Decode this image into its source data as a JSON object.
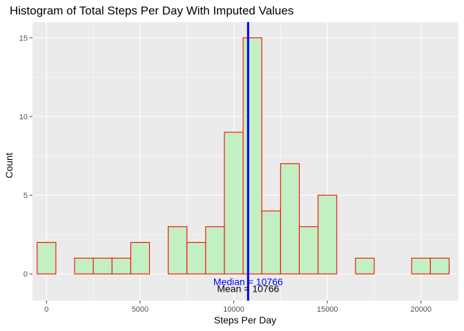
{
  "chart_data": {
    "type": "bar",
    "title": "Histogram of Total Steps Per Day With Imputed Values",
    "xlabel": "Steps Per Day",
    "ylabel": "Count",
    "xlim": [
      -750,
      22000
    ],
    "ylim": [
      -1.7,
      16
    ],
    "x_ticks": [
      0,
      5000,
      10000,
      15000,
      20000
    ],
    "x_tick_labels": [
      "0",
      "5000",
      "10000",
      "15000",
      "20000"
    ],
    "y_ticks": [
      0,
      5,
      10,
      15
    ],
    "y_tick_labels": [
      "0",
      "5",
      "10",
      "15"
    ],
    "grid": true,
    "bin_width": 1000,
    "bins": [
      {
        "center": 0,
        "count": 2
      },
      {
        "center": 1000,
        "count": 0
      },
      {
        "center": 2000,
        "count": 1
      },
      {
        "center": 3000,
        "count": 1
      },
      {
        "center": 4000,
        "count": 1
      },
      {
        "center": 5000,
        "count": 2
      },
      {
        "center": 6000,
        "count": 0
      },
      {
        "center": 7000,
        "count": 3
      },
      {
        "center": 8000,
        "count": 2
      },
      {
        "center": 9000,
        "count": 3
      },
      {
        "center": 10000,
        "count": 9
      },
      {
        "center": 11000,
        "count": 15
      },
      {
        "center": 12000,
        "count": 4
      },
      {
        "center": 13000,
        "count": 7
      },
      {
        "center": 14000,
        "count": 3
      },
      {
        "center": 15000,
        "count": 5
      },
      {
        "center": 16000,
        "count": 0
      },
      {
        "center": 17000,
        "count": 1
      },
      {
        "center": 18000,
        "count": 0
      },
      {
        "center": 19000,
        "count": 0
      },
      {
        "center": 20000,
        "count": 1
      },
      {
        "center": 21000,
        "count": 1
      }
    ],
    "colors": {
      "panel_bg": "#ebebeb",
      "grid": "#ffffff",
      "bar_fill": "#c2f0c2",
      "bar_border": "#ff0000",
      "median_line": "#0000ff",
      "median_text": "#0000ff",
      "mean_text": "#000000"
    },
    "reference_lines": [
      {
        "name": "Median",
        "value": 10766
      }
    ],
    "annotations": [
      {
        "name": "median",
        "text": "Median =     10766",
        "x": 10766,
        "y": -0.55,
        "color": "#0000ff"
      },
      {
        "name": "mean",
        "text": "Mean =     10766",
        "x": 10766,
        "y": -1.0,
        "color": "#000000"
      }
    ]
  }
}
